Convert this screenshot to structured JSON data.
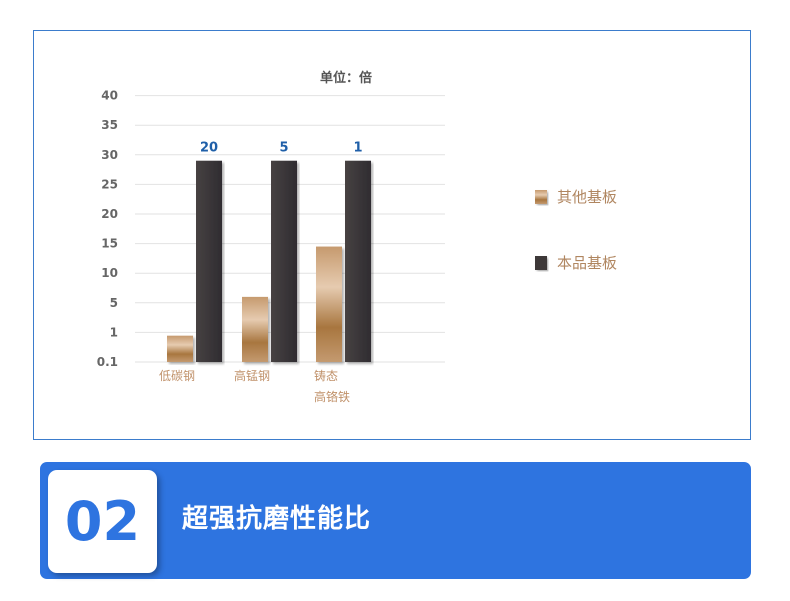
{
  "chart_data": {
    "type": "bar",
    "title": "单位：倍",
    "categories": [
      "低碳钢",
      "高锰钢",
      "铸态\n高铬铁"
    ],
    "category_lines": [
      [
        "低碳钢"
      ],
      [
        "高锰钢"
      ],
      [
        "铸态",
        "高铬铁"
      ]
    ],
    "yticks": [
      0.1,
      1,
      5,
      10,
      15,
      20,
      25,
      30,
      35,
      40
    ],
    "ylim": [
      0.1,
      40
    ],
    "grid": true,
    "legend_position": "right",
    "series": [
      {
        "name": "其他基板",
        "values": [
          0.9,
          6,
          14.5
        ],
        "color": "#b98a5e"
      },
      {
        "name": "本品基板",
        "values": [
          29,
          29,
          29
        ],
        "color": "#3c3838"
      }
    ],
    "data_labels": [
      "20",
      "5",
      "1"
    ],
    "data_label_color": "#1f5fa8"
  },
  "banner": {
    "number": "02",
    "title": "超强抗磨性能比",
    "color": "#2e74e0"
  }
}
